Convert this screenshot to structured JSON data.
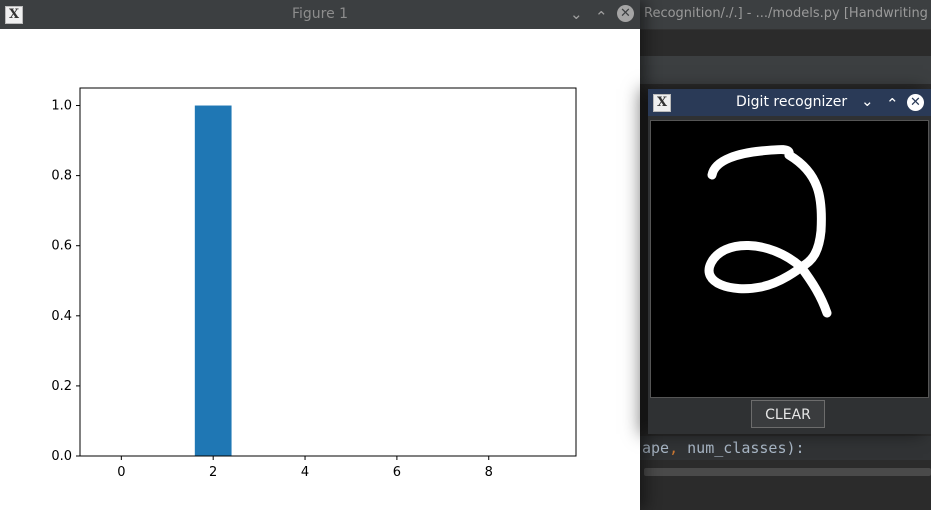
{
  "ide_window": {
    "title": "Recognition/./.] - .../models.py [Handwriting",
    "code_prefix": "ape",
    "code_comma": ",",
    "code_rest": " num_classes):"
  },
  "figure_window": {
    "title": "Figure 1",
    "app_icon": "x-window-icon",
    "minimize_glyph": "⌄",
    "maximize_glyph": "⌃",
    "close_glyph": "✕"
  },
  "digit_window": {
    "title": "Digit recognizer",
    "app_icon": "x-window-icon",
    "clear_label": "CLEAR",
    "minimize_glyph": "⌄",
    "maximize_glyph": "⌃",
    "close_glyph": "✕"
  },
  "chart_data": {
    "type": "bar",
    "x": [
      0,
      1,
      2,
      3,
      4,
      5,
      6,
      7,
      8,
      9
    ],
    "values": [
      0,
      0,
      1.0,
      0,
      0,
      0,
      0,
      0,
      0,
      0
    ],
    "xticks": [
      0,
      2,
      4,
      6,
      8
    ],
    "yticks": [
      0.0,
      0.2,
      0.4,
      0.6,
      0.8,
      1.0
    ],
    "ytick_labels": [
      "0.0",
      "0.2",
      "0.4",
      "0.6",
      "0.8",
      "1.0"
    ],
    "xlim": [
      -0.9,
      9.9
    ],
    "ylim": [
      0,
      1.05
    ],
    "bar_width": 0.8,
    "bar_color": "#1f77b4",
    "grid": false,
    "title": "",
    "xlabel": "",
    "ylabel": ""
  },
  "colors": {
    "bar": "#1f77b4",
    "digit_titlebar": "#2a3a57",
    "canvas_bg": "#000000",
    "stroke": "#ffffff"
  }
}
